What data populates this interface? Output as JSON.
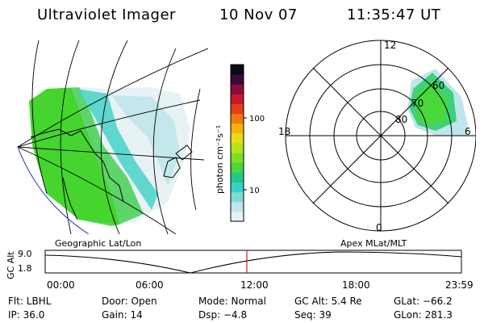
{
  "header": {
    "instrument": "Ultraviolet Imager",
    "date": "10 Nov 07",
    "time": "11:35:47 UT"
  },
  "colorbar": {
    "unit_label": "photon cm⁻²s⁻¹",
    "ticks": [
      "100",
      "10"
    ],
    "colors": [
      "#e8f0f4",
      "#bfe6ea",
      "#7ddbd6",
      "#34d3c6",
      "#22c78a",
      "#48d83a",
      "#7bde27",
      "#b6e21a",
      "#e6de14",
      "#f5b20f",
      "#f07a10",
      "#e0401a",
      "#c81828",
      "#8a0d3c",
      "#3a0a3a",
      "#0b0b12"
    ]
  },
  "geo_panel": {
    "title": "Geographic Lat/Lon"
  },
  "polar_panel": {
    "title": "Apex  MLat/MLT",
    "labels": {
      "top": "12",
      "left": "18",
      "right": "6",
      "bottom": "0"
    },
    "rings": [
      "60",
      "70",
      "80"
    ]
  },
  "timeline": {
    "axis_label": "GC Alt",
    "y_ticks": [
      "9.0",
      "1.8"
    ],
    "x_ticks": [
      "00:00",
      "06:00",
      "12:00",
      "18:00",
      "23:59"
    ],
    "marker_color": "#d32020"
  },
  "footer": {
    "flt": "Flt: LBHL",
    "door": "Door: Open",
    "mode": "Mode: Normal",
    "gcalt": "GC Alt: 5.4 Re",
    "glat": "GLat: −66.2",
    "ip": "IP: 36.0",
    "gain": "Gain: 14",
    "dsp": "Dsp:     −4.8",
    "seq": "Seq: 39",
    "glon": "GLon: 281.3"
  }
}
